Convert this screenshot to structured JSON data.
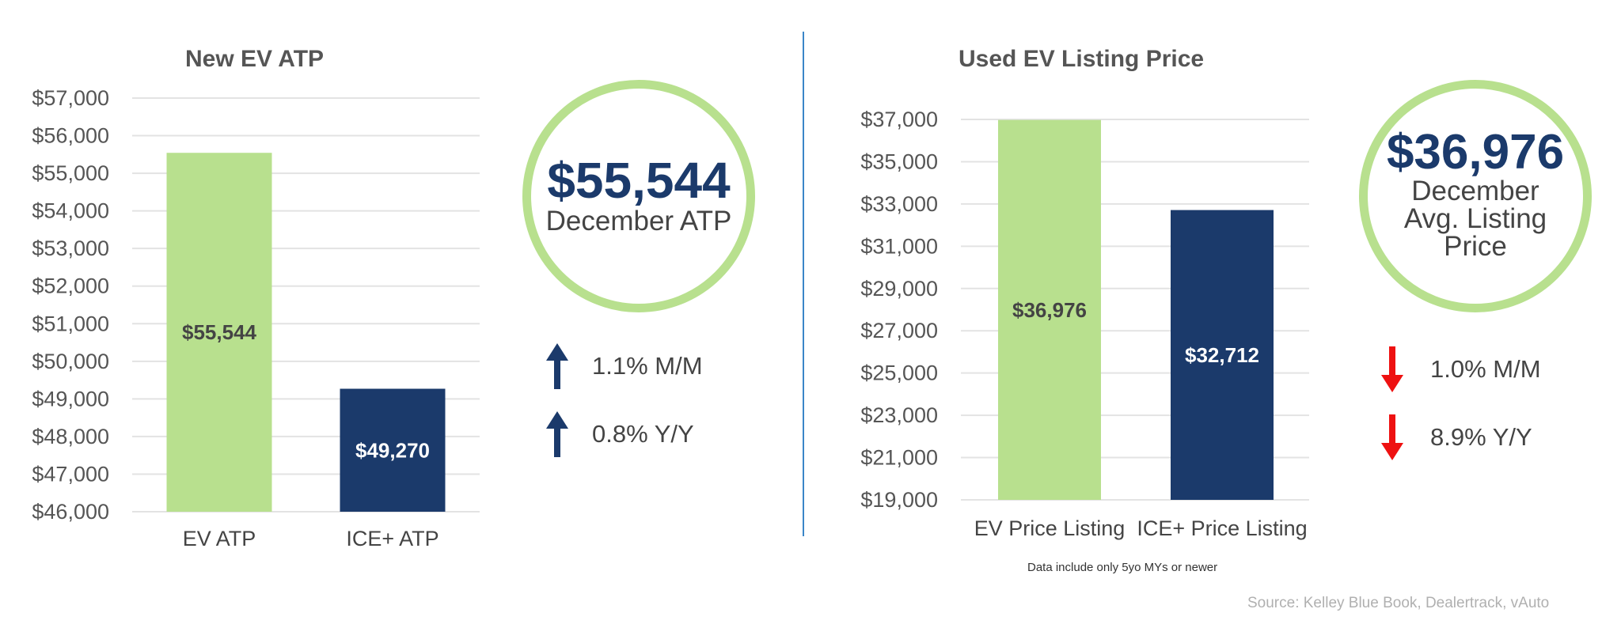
{
  "colors": {
    "green": "#b8e08e",
    "navy": "#1b3a6b",
    "grid": "#e3e3e3",
    "text": "#555555",
    "up_arrow": "#1b3a6b",
    "down_arrow": "#ee1111",
    "divider": "#3a86c8"
  },
  "chart_data": [
    {
      "type": "bar",
      "title": "New EV ATP",
      "categories": [
        "EV ATP",
        "ICE+ ATP"
      ],
      "values": [
        55544,
        49270
      ],
      "data_labels": [
        "$55,544",
        "$49,270"
      ],
      "bar_colors": [
        "#b8e08e",
        "#1b3a6b"
      ],
      "label_colors": [
        "#444444",
        "#ffffff"
      ],
      "ylim": [
        46000,
        57000
      ],
      "yticks": [
        46000,
        47000,
        48000,
        49000,
        50000,
        51000,
        52000,
        53000,
        54000,
        55000,
        56000,
        57000
      ],
      "ytick_labels": [
        "$46,000",
        "$47,000",
        "$48,000",
        "$49,000",
        "$50,000",
        "$51,000",
        "$52,000",
        "$53,000",
        "$54,000",
        "$55,000",
        "$56,000",
        "$57,000"
      ],
      "grid": true
    },
    {
      "type": "bar",
      "title": "Used EV Listing Price",
      "categories": [
        "EV Price Listing",
        "ICE+ Price Listing"
      ],
      "values": [
        36976,
        32712
      ],
      "data_labels": [
        "$36,976",
        "$32,712"
      ],
      "bar_colors": [
        "#b8e08e",
        "#1b3a6b"
      ],
      "label_colors": [
        "#444444",
        "#ffffff"
      ],
      "ylim": [
        19000,
        37000
      ],
      "yticks": [
        19000,
        21000,
        23000,
        25000,
        27000,
        29000,
        31000,
        33000,
        35000,
        37000
      ],
      "ytick_labels": [
        "$19,000",
        "$21,000",
        "$23,000",
        "$25,000",
        "$27,000",
        "$29,000",
        "$31,000",
        "$33,000",
        "$35,000",
        "$37,000"
      ],
      "grid": true
    }
  ],
  "new_ev": {
    "circle_value": "$55,544",
    "circle_caption": "December ATP",
    "stats": [
      {
        "direction": "up",
        "text": "1.1% M/M"
      },
      {
        "direction": "up",
        "text": "0.8% Y/Y"
      }
    ]
  },
  "used_ev": {
    "circle_value": "$36,976",
    "circle_caption_lines": [
      "December",
      "Avg. Listing",
      "Price"
    ],
    "stats": [
      {
        "direction": "down",
        "text": "1.0% M/M"
      },
      {
        "direction": "down",
        "text": "8.9% Y/Y"
      }
    ],
    "note": "Data include only 5yo MYs or newer"
  },
  "source": "Source: Kelley Blue Book, Dealertrack, vAuto"
}
